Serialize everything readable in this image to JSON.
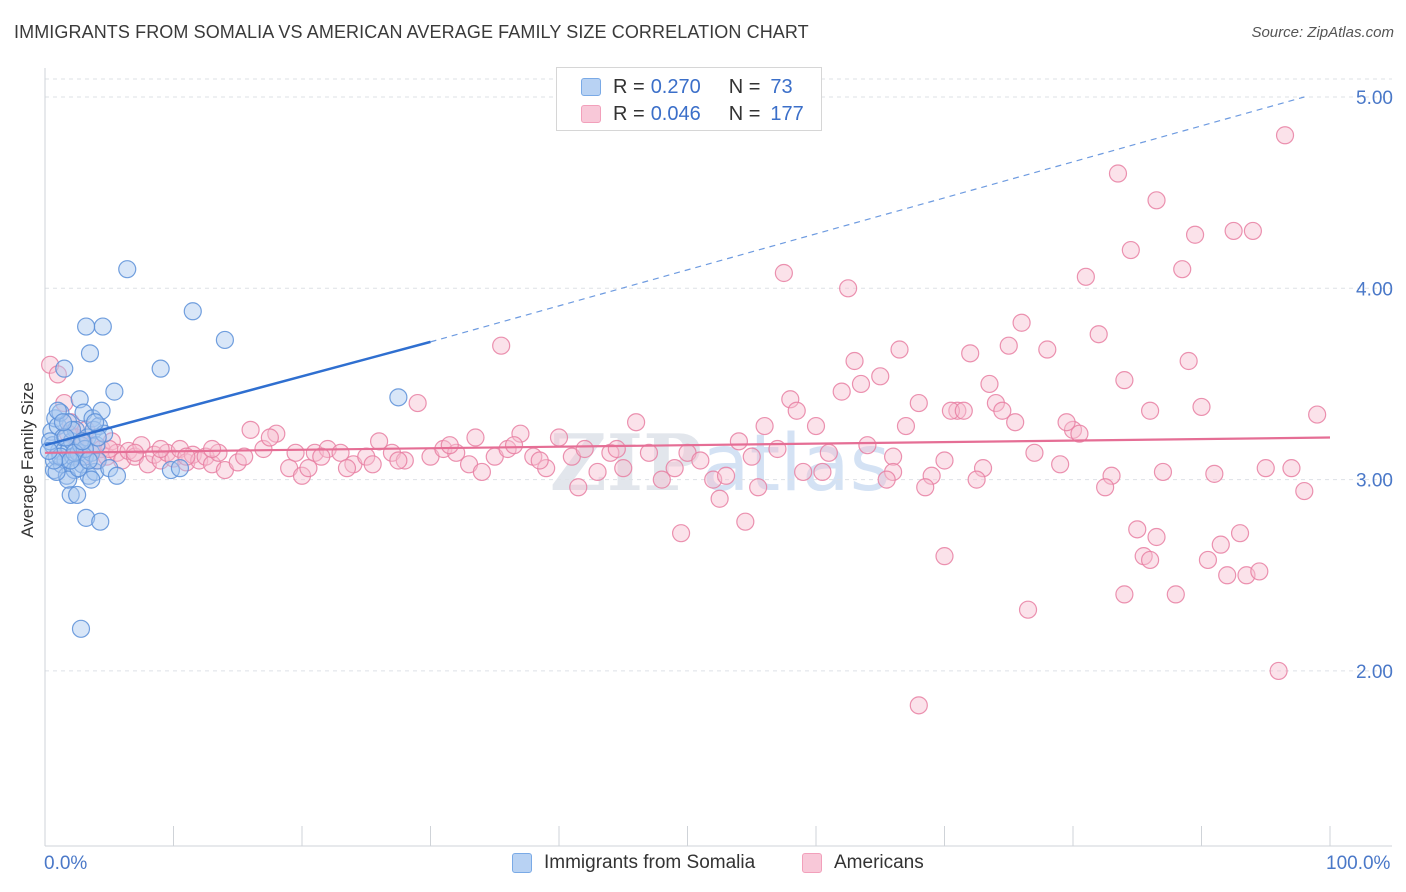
{
  "title": "IMMIGRANTS FROM SOMALIA VS AMERICAN AVERAGE FAMILY SIZE CORRELATION CHART",
  "source": "Source: ZipAtlas.com",
  "watermark": "ZIPatlas",
  "legend_top": [
    {
      "r_label": "R =",
      "r_value": "0.270",
      "n_label": "N =",
      "n_value": "73",
      "color": "#7aaae6"
    },
    {
      "r_label": "R =",
      "r_value": "0.046",
      "n_label": "N =",
      "n_value": "177",
      "color": "#f2a0bb"
    }
  ],
  "legend_bottom": [
    {
      "label": "Immigrants from Somalia",
      "color": "#7aaae6"
    },
    {
      "label": "Americans",
      "color": "#f2a0bb"
    }
  ],
  "x_tick_labels": [
    "0.0%",
    "100.0%"
  ],
  "chart_data": {
    "type": "scatter",
    "title": "IMMIGRANTS FROM SOMALIA VS AMERICAN AVERAGE FAMILY SIZE CORRELATION CHART",
    "xlabel": "",
    "ylabel": "Average Family Size",
    "xlim": [
      0,
      100
    ],
    "ylim": [
      1.0,
      5.2
    ],
    "y_ticks": [
      2.0,
      3.0,
      4.0,
      5.0
    ],
    "y_tick_labels": [
      "2.00",
      "3.00",
      "4.00",
      "5.00"
    ],
    "grid": "horizontal dashed",
    "series": [
      {
        "name": "Immigrants from Somalia",
        "color": "#5a8fd8",
        "fill": "#a9c8f0",
        "trend": {
          "x0": 0,
          "y0": 3.18,
          "x1": 30,
          "y1": 3.72,
          "dashed_to_x": 98,
          "dashed_to_y": 5.0
        },
        "points": [
          [
            0.5,
            3.25
          ],
          [
            0.6,
            3.18
          ],
          [
            0.7,
            3.05
          ],
          [
            0.8,
            3.32
          ],
          [
            0.9,
            3.12
          ],
          [
            1.0,
            3.28
          ],
          [
            1.1,
            3.15
          ],
          [
            1.2,
            3.35
          ],
          [
            1.3,
            3.08
          ],
          [
            1.4,
            3.22
          ],
          [
            1.5,
            3.58
          ],
          [
            1.6,
            3.1
          ],
          [
            1.7,
            3.02
          ],
          [
            1.8,
            3.3
          ],
          [
            1.9,
            3.16
          ],
          [
            2.0,
            2.92
          ],
          [
            2.1,
            3.2
          ],
          [
            2.2,
            3.12
          ],
          [
            2.3,
            3.05
          ],
          [
            2.4,
            3.26
          ],
          [
            2.5,
            2.92
          ],
          [
            2.6,
            3.14
          ],
          [
            2.7,
            3.42
          ],
          [
            2.8,
            3.18
          ],
          [
            2.9,
            3.08
          ],
          [
            3.0,
            3.35
          ],
          [
            3.1,
            3.12
          ],
          [
            3.2,
            2.8
          ],
          [
            3.3,
            3.22
          ],
          [
            3.4,
            3.02
          ],
          [
            3.5,
            3.66
          ],
          [
            3.6,
            3.14
          ],
          [
            3.7,
            3.32
          ],
          [
            3.8,
            3.26
          ],
          [
            3.9,
            3.04
          ],
          [
            4.0,
            3.18
          ],
          [
            4.1,
            3.1
          ],
          [
            4.2,
            3.28
          ],
          [
            4.3,
            2.78
          ],
          [
            4.4,
            3.36
          ],
          [
            4.5,
            3.8
          ],
          [
            4.6,
            3.24
          ],
          [
            5.0,
            3.06
          ],
          [
            5.4,
            3.46
          ],
          [
            5.6,
            3.02
          ],
          [
            6.4,
            4.1
          ],
          [
            9.0,
            3.58
          ],
          [
            9.8,
            3.05
          ],
          [
            10.5,
            3.06
          ],
          [
            11.5,
            3.88
          ],
          [
            14.0,
            3.73
          ],
          [
            27.5,
            3.43
          ],
          [
            2.8,
            2.22
          ],
          [
            3.2,
            3.8
          ],
          [
            1.8,
            3.0
          ],
          [
            0.4,
            3.2
          ],
          [
            0.9,
            3.04
          ],
          [
            1.2,
            3.12
          ],
          [
            2.1,
            3.26
          ],
          [
            2.6,
            3.06
          ],
          [
            3.1,
            3.16
          ],
          [
            3.6,
            3.0
          ],
          [
            4.1,
            3.22
          ],
          [
            0.7,
            3.1
          ],
          [
            1.6,
            3.22
          ],
          [
            2.3,
            3.14
          ],
          [
            3.4,
            3.1
          ],
          [
            3.9,
            3.3
          ],
          [
            1.0,
            3.36
          ],
          [
            0.3,
            3.15
          ],
          [
            2.0,
            3.1
          ],
          [
            2.9,
            3.2
          ],
          [
            1.4,
            3.3
          ]
        ]
      },
      {
        "name": "Americans",
        "color": "#e87fa2",
        "fill": "#f6bfd1",
        "trend": {
          "x0": 0,
          "y0": 3.14,
          "x1": 100,
          "y1": 3.22
        },
        "points": [
          [
            0.4,
            3.6
          ],
          [
            1.0,
            3.55
          ],
          [
            1.5,
            3.4
          ],
          [
            2.0,
            3.3
          ],
          [
            2.4,
            3.22
          ],
          [
            2.8,
            3.12
          ],
          [
            3.2,
            3.26
          ],
          [
            3.6,
            3.18
          ],
          [
            4.0,
            3.1
          ],
          [
            4.4,
            3.16
          ],
          [
            4.8,
            3.12
          ],
          [
            5.2,
            3.2
          ],
          [
            5.6,
            3.14
          ],
          [
            6.0,
            3.1
          ],
          [
            6.5,
            3.15
          ],
          [
            7.0,
            3.12
          ],
          [
            7.5,
            3.18
          ],
          [
            8.0,
            3.08
          ],
          [
            8.5,
            3.13
          ],
          [
            9.0,
            3.1
          ],
          [
            9.5,
            3.14
          ],
          [
            10.0,
            3.11
          ],
          [
            10.5,
            3.16
          ],
          [
            11.0,
            3.09
          ],
          [
            11.5,
            3.13
          ],
          [
            12.0,
            3.1
          ],
          [
            12.5,
            3.12
          ],
          [
            13.0,
            3.08
          ],
          [
            13.5,
            3.14
          ],
          [
            14.0,
            3.05
          ],
          [
            15.0,
            3.09
          ],
          [
            16.0,
            3.26
          ],
          [
            17.0,
            3.16
          ],
          [
            18.0,
            3.24
          ],
          [
            19.0,
            3.06
          ],
          [
            20.0,
            3.02
          ],
          [
            20.5,
            3.06
          ],
          [
            21.0,
            3.14
          ],
          [
            22.0,
            3.16
          ],
          [
            23.0,
            3.14
          ],
          [
            24.0,
            3.08
          ],
          [
            25.0,
            3.12
          ],
          [
            26.0,
            3.2
          ],
          [
            27.0,
            3.14
          ],
          [
            28.0,
            3.1
          ],
          [
            29.0,
            3.4
          ],
          [
            30.0,
            3.12
          ],
          [
            31.0,
            3.16
          ],
          [
            32.0,
            3.14
          ],
          [
            33.0,
            3.08
          ],
          [
            34.0,
            3.04
          ],
          [
            35.0,
            3.12
          ],
          [
            36.0,
            3.16
          ],
          [
            37.0,
            3.24
          ],
          [
            38.0,
            3.12
          ],
          [
            39.0,
            3.06
          ],
          [
            40.0,
            3.22
          ],
          [
            41.0,
            3.12
          ],
          [
            42.0,
            3.16
          ],
          [
            43.0,
            3.04
          ],
          [
            44.0,
            3.14
          ],
          [
            45.0,
            3.06
          ],
          [
            46.0,
            3.3
          ],
          [
            47.0,
            3.14
          ],
          [
            48.0,
            3.0
          ],
          [
            49.0,
            3.06
          ],
          [
            50.0,
            3.14
          ],
          [
            51.0,
            3.1
          ],
          [
            52.0,
            3.0
          ],
          [
            53.0,
            3.02
          ],
          [
            54.0,
            3.2
          ],
          [
            55.0,
            3.12
          ],
          [
            56.0,
            3.28
          ],
          [
            57.0,
            3.16
          ],
          [
            58.0,
            3.42
          ],
          [
            59.0,
            3.04
          ],
          [
            60.0,
            3.28
          ],
          [
            61.0,
            3.14
          ],
          [
            62.0,
            3.46
          ],
          [
            63.0,
            3.62
          ],
          [
            64.0,
            3.18
          ],
          [
            65.0,
            3.54
          ],
          [
            66.0,
            3.12
          ],
          [
            67.0,
            3.28
          ],
          [
            68.0,
            3.4
          ],
          [
            69.0,
            3.02
          ],
          [
            70.0,
            3.1
          ],
          [
            71.0,
            3.36
          ],
          [
            72.0,
            3.66
          ],
          [
            73.0,
            3.06
          ],
          [
            74.0,
            3.4
          ],
          [
            75.0,
            3.7
          ],
          [
            76.0,
            3.82
          ],
          [
            77.0,
            3.14
          ],
          [
            78.0,
            3.68
          ],
          [
            79.0,
            3.08
          ],
          [
            80.0,
            3.26
          ],
          [
            81.0,
            4.06
          ],
          [
            82.0,
            3.76
          ],
          [
            83.0,
            3.02
          ],
          [
            84.0,
            3.52
          ],
          [
            85.0,
            2.74
          ],
          [
            86.0,
            3.36
          ],
          [
            87.0,
            3.04
          ],
          [
            88.0,
            2.4
          ],
          [
            89.0,
            3.62
          ],
          [
            90.0,
            3.38
          ],
          [
            91.0,
            3.03
          ],
          [
            92.0,
            2.5
          ],
          [
            93.0,
            2.72
          ],
          [
            94.0,
            4.3
          ],
          [
            95.0,
            3.06
          ],
          [
            96.0,
            2.0
          ],
          [
            97.0,
            3.06
          ],
          [
            98.0,
            2.94
          ],
          [
            99.0,
            3.34
          ],
          [
            96.5,
            4.8
          ],
          [
            83.5,
            4.6
          ],
          [
            84.5,
            4.2
          ],
          [
            86.5,
            4.46
          ],
          [
            88.5,
            4.1
          ],
          [
            92.5,
            4.3
          ],
          [
            89.5,
            4.28
          ],
          [
            57.5,
            4.08
          ],
          [
            62.5,
            4.0
          ],
          [
            35.5,
            3.7
          ],
          [
            66.5,
            3.68
          ],
          [
            74.5,
            3.36
          ],
          [
            70.5,
            3.36
          ],
          [
            71.5,
            3.36
          ],
          [
            80.5,
            3.24
          ],
          [
            79.5,
            3.3
          ],
          [
            66.0,
            3.04
          ],
          [
            68.5,
            2.96
          ],
          [
            85.5,
            2.6
          ],
          [
            76.5,
            2.32
          ],
          [
            86.0,
            2.58
          ],
          [
            91.5,
            2.66
          ],
          [
            90.5,
            2.58
          ],
          [
            93.5,
            2.5
          ],
          [
            94.5,
            2.52
          ],
          [
            86.5,
            2.7
          ],
          [
            82.5,
            2.96
          ],
          [
            84.0,
            2.4
          ],
          [
            72.5,
            3.0
          ],
          [
            65.5,
            3.0
          ],
          [
            60.5,
            3.04
          ],
          [
            55.5,
            2.96
          ],
          [
            52.5,
            2.9
          ],
          [
            49.5,
            2.72
          ],
          [
            54.5,
            2.78
          ],
          [
            68.0,
            1.82
          ],
          [
            70.0,
            2.6
          ],
          [
            75.5,
            3.3
          ],
          [
            73.5,
            3.5
          ],
          [
            63.5,
            3.5
          ],
          [
            58.5,
            3.36
          ],
          [
            44.5,
            3.16
          ],
          [
            41.5,
            2.96
          ],
          [
            38.5,
            3.1
          ],
          [
            36.5,
            3.18
          ],
          [
            33.5,
            3.22
          ],
          [
            31.5,
            3.18
          ],
          [
            27.5,
            3.1
          ],
          [
            25.5,
            3.08
          ],
          [
            23.5,
            3.06
          ],
          [
            21.5,
            3.12
          ],
          [
            19.5,
            3.14
          ],
          [
            17.5,
            3.22
          ],
          [
            15.5,
            3.12
          ],
          [
            13.0,
            3.16
          ],
          [
            11.0,
            3.12
          ],
          [
            9.0,
            3.16
          ],
          [
            7.0,
            3.14
          ],
          [
            5.0,
            3.16
          ],
          [
            3.0,
            3.2
          ],
          [
            1.8,
            3.24
          ]
        ]
      }
    ]
  }
}
